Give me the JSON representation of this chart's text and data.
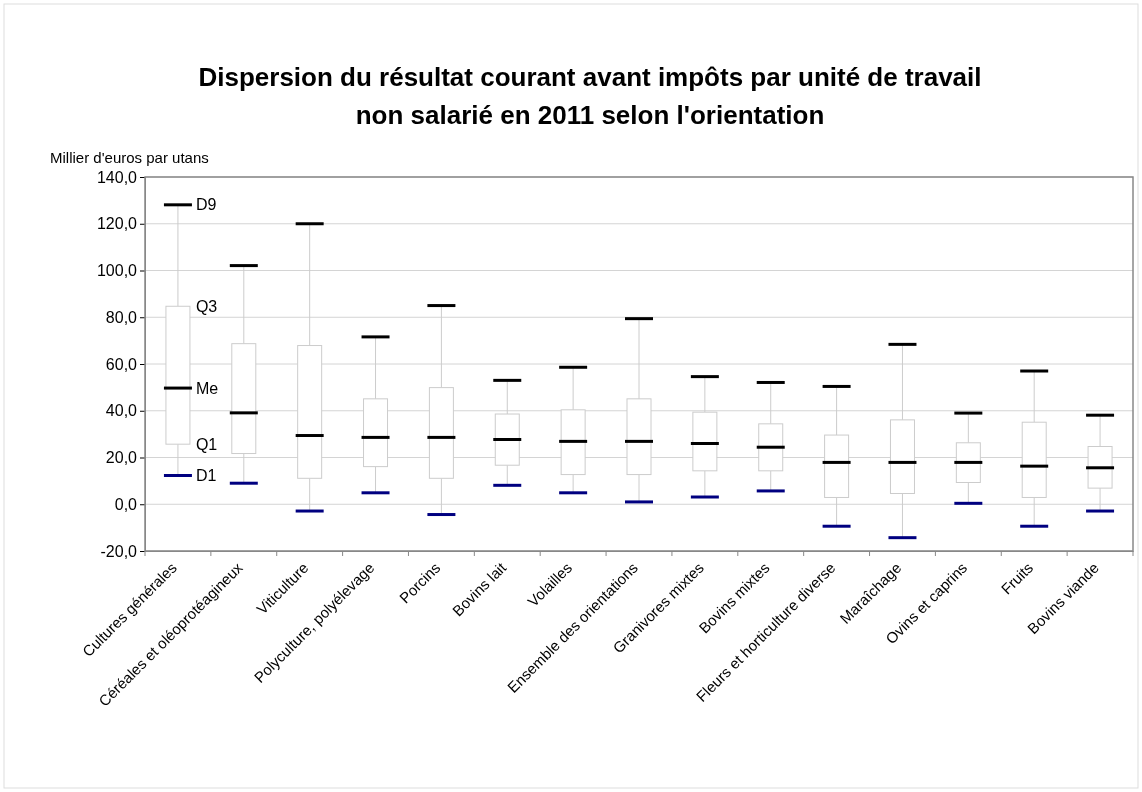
{
  "chart_data": {
    "type": "box",
    "title": "Dispersion du résultat courant avant impôts par unité de travail non salarié en 2011 selon l'orientation",
    "ylabel": "Millier d'euros par utans",
    "categories": [
      "Cultures générales",
      "Céréales et oléoprotéagineux",
      "Viticulture",
      "Polyculture, polyélevage",
      "Porcins",
      "Bovins lait",
      "Volailles",
      "Ensemble des orientations",
      "Granivores mixtes",
      "Bovins mixtes",
      "Fleurs et horticulture diverse",
      "Maraîchage",
      "Ovins et caprins",
      "Fruits",
      "Bovins viande"
    ],
    "boxes": [
      {
        "low": 12.3,
        "q1": 25.7,
        "median": 49.7,
        "q3": 84.7,
        "high": 128.1
      },
      {
        "low": 9.0,
        "q1": 21.7,
        "median": 39.1,
        "q3": 68.7,
        "high": 102.1
      },
      {
        "low": -2.9,
        "q1": 11.1,
        "median": 29.4,
        "q3": 67.9,
        "high": 120.0
      },
      {
        "low": 4.9,
        "q1": 16.1,
        "median": 28.6,
        "q3": 45.1,
        "high": 71.6
      },
      {
        "low": -4.4,
        "q1": 11.1,
        "median": 28.6,
        "q3": 49.9,
        "high": 85.0
      },
      {
        "low": 8.1,
        "q1": 16.7,
        "median": 27.7,
        "q3": 38.6,
        "high": 53.0
      },
      {
        "low": 4.9,
        "q1": 12.7,
        "median": 26.9,
        "q3": 40.4,
        "high": 58.6
      },
      {
        "low": 1.0,
        "q1": 12.7,
        "median": 26.9,
        "q3": 45.1,
        "high": 79.4
      },
      {
        "low": 3.1,
        "q1": 14.3,
        "median": 26.0,
        "q3": 39.4,
        "high": 54.6
      },
      {
        "low": 5.7,
        "q1": 14.3,
        "median": 24.4,
        "q3": 34.4,
        "high": 52.1
      },
      {
        "low": -9.4,
        "q1": 2.9,
        "median": 17.9,
        "q3": 29.6,
        "high": 50.4
      },
      {
        "low": -14.3,
        "q1": 4.6,
        "median": 17.9,
        "q3": 36.1,
        "high": 68.4
      },
      {
        "low": 0.4,
        "q1": 9.3,
        "median": 17.9,
        "q3": 26.3,
        "high": 39.0
      },
      {
        "low": -9.4,
        "q1": 2.9,
        "median": 16.3,
        "q3": 35.1,
        "high": 57.0
      },
      {
        "low": -2.9,
        "q1": 6.9,
        "median": 15.6,
        "q3": 24.7,
        "high": 38.1
      }
    ],
    "ylim": [
      -20,
      140
    ],
    "yticks": [
      {
        "value": -20,
        "label": "-20,0"
      },
      {
        "value": 0,
        "label": "0,0"
      },
      {
        "value": 20,
        "label": "20,0"
      },
      {
        "value": 40,
        "label": "40,0"
      },
      {
        "value": 60,
        "label": "60,0"
      },
      {
        "value": 80,
        "label": "80,0"
      },
      {
        "value": 100,
        "label": "100,0"
      },
      {
        "value": 120,
        "label": "120,0"
      },
      {
        "value": 140,
        "label": "140,0"
      }
    ],
    "grid": "y",
    "annotations": [
      {
        "text": "D9",
        "x": "Cultures générales",
        "y": 128.1
      },
      {
        "text": "Q3",
        "x": "Cultures générales",
        "y": 84.7
      },
      {
        "text": "Me",
        "x": "Cultures générales",
        "y": 49.7
      },
      {
        "text": "Q1",
        "x": "Cultures générales",
        "y": 25.7
      },
      {
        "text": "D1",
        "x": "Cultures générales",
        "y": 12.3
      }
    ]
  }
}
